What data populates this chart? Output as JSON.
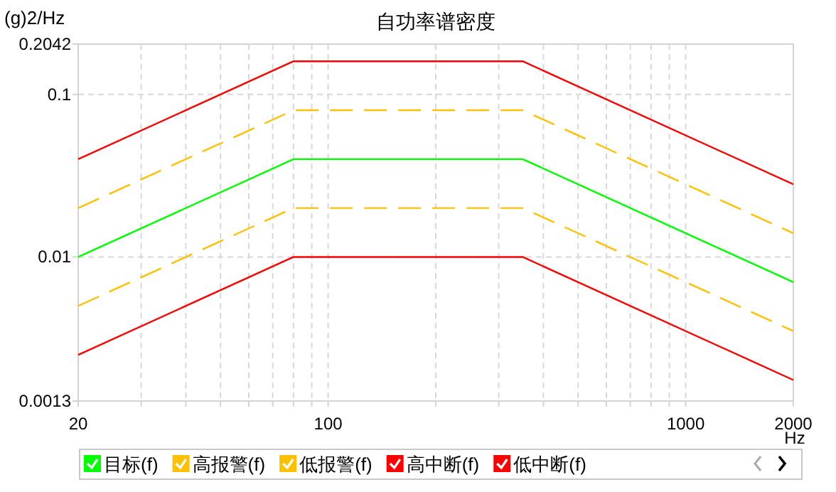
{
  "chart_data": {
    "type": "line",
    "title": "自功率谱密度",
    "xlabel": "Hz",
    "ylabel": "(g)2/Hz",
    "log": "xy",
    "grid": true,
    "legend": "bottom",
    "x": [
      20,
      80,
      350,
      2000
    ],
    "xlim": [
      20,
      2000
    ],
    "ylim": [
      0.0013,
      0.2042
    ],
    "xticks": [
      20,
      {
        "value": 30,
        "label": null
      },
      {
        "value": 40,
        "label": null
      },
      {
        "value": 50,
        "label": null
      },
      {
        "value": 60,
        "label": null
      },
      {
        "value": 70,
        "label": null
      },
      {
        "value": 80,
        "label": null
      },
      {
        "value": 90,
        "label": null
      },
      100,
      {
        "value": 200,
        "label": null
      },
      {
        "value": 300,
        "label": null
      },
      {
        "value": 400,
        "label": null
      },
      {
        "value": 500,
        "label": null
      },
      {
        "value": 600,
        "label": null
      },
      {
        "value": 700,
        "label": null
      },
      {
        "value": 800,
        "label": null
      },
      {
        "value": 900,
        "label": null
      },
      1000,
      2000
    ],
    "yticks": [
      0.0013,
      0.01,
      0.1,
      0.2042
    ],
    "series": [
      {
        "name": "目标(f)",
        "color": "#00ff00",
        "line_style": "solid",
        "values": [
          0.01,
          0.04,
          0.04,
          0.007
        ]
      },
      {
        "name": "高报警(f)",
        "color": "#ffc000",
        "line_style": "dashed",
        "values": [
          0.02,
          0.08,
          0.08,
          0.014
        ]
      },
      {
        "name": "低报警(f)",
        "color": "#ffc000",
        "line_style": "dashed",
        "values": [
          0.005,
          0.02,
          0.02,
          0.0035
        ]
      },
      {
        "name": "高中断(f)",
        "color": "#ff0000",
        "line_style": "solid",
        "values": [
          0.04,
          0.16,
          0.16,
          0.028
        ]
      },
      {
        "name": "低中断(f)",
        "color": "#ff0000",
        "line_style": "solid",
        "values": [
          0.0025,
          0.01,
          0.01,
          0.00175
        ]
      }
    ]
  }
}
